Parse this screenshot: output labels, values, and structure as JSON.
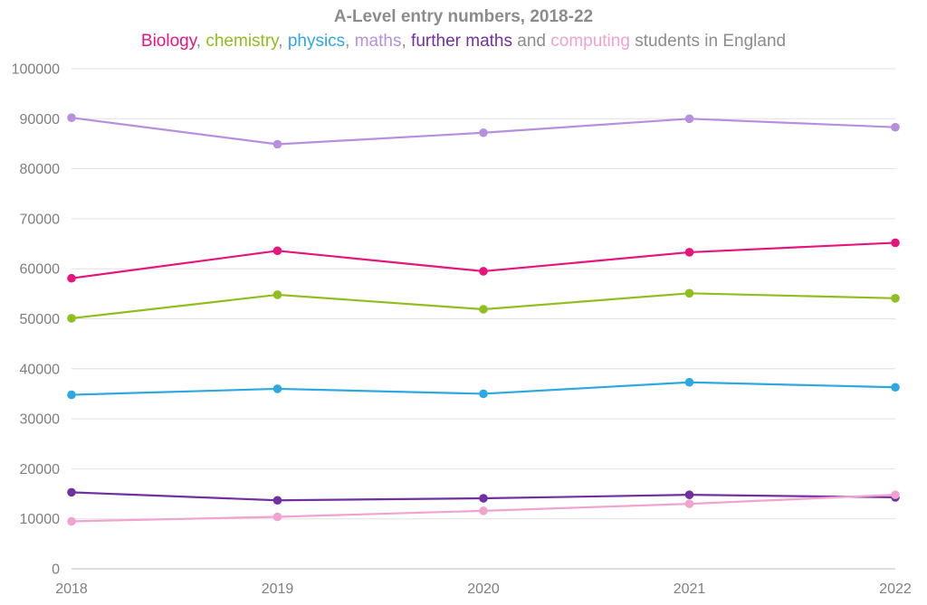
{
  "chart_data": {
    "type": "line",
    "title": "A-Level entry numbers, 2018-22",
    "subtitle_parts": [
      {
        "text": "Biology",
        "color": "#e6157c"
      },
      {
        "text": ", ",
        "color": "#8c8c8c"
      },
      {
        "text": "chemistry",
        "color": "#8fbe1f"
      },
      {
        "text": ", ",
        "color": "#8c8c8c"
      },
      {
        "text": "physics",
        "color": "#2ea8e0"
      },
      {
        "text": ", ",
        "color": "#8c8c8c"
      },
      {
        "text": "maths",
        "color": "#b78fdf"
      },
      {
        "text": ", ",
        "color": "#8c8c8c"
      },
      {
        "text": "further maths",
        "color": "#7030a0"
      },
      {
        "text": " and ",
        "color": "#8c8c8c"
      },
      {
        "text": "computing",
        "color": "#f0a3cf"
      },
      {
        "text": " students in England",
        "color": "#8c8c8c"
      }
    ],
    "x": [
      "2018",
      "2019",
      "2020",
      "2021",
      "2022"
    ],
    "ylim": [
      0,
      100000
    ],
    "yticks": [
      "0",
      "10000",
      "20000",
      "30000",
      "40000",
      "50000",
      "60000",
      "70000",
      "80000",
      "90000",
      "100000"
    ],
    "grid": true,
    "series": [
      {
        "key": "maths",
        "color": "#b78fdf",
        "values": [
          90200,
          84900,
          87200,
          90000,
          88300
        ]
      },
      {
        "key": "biology",
        "color": "#e6157c",
        "values": [
          58100,
          63600,
          59500,
          63300,
          65200
        ]
      },
      {
        "key": "chemistry",
        "color": "#8fbe1f",
        "values": [
          50100,
          54800,
          51900,
          55100,
          54100
        ]
      },
      {
        "key": "physics",
        "color": "#2ea8e0",
        "values": [
          34800,
          36000,
          35000,
          37300,
          36300
        ]
      },
      {
        "key": "further-maths",
        "color": "#7030a0",
        "values": [
          15300,
          13700,
          14100,
          14800,
          14300
        ]
      },
      {
        "key": "computing",
        "color": "#f0a3cf",
        "values": [
          9500,
          10400,
          11600,
          13000,
          14800
        ]
      }
    ]
  }
}
